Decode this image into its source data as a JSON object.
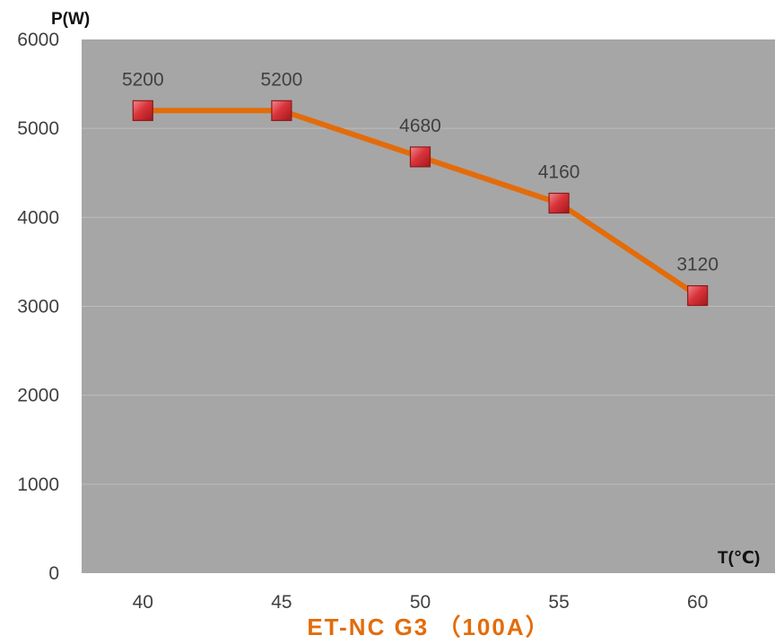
{
  "chart_data": {
    "type": "line",
    "title": "ET-NC G3 （100A）",
    "xlabel": "T(℃)",
    "ylabel": "P(W)",
    "x": [
      40,
      45,
      50,
      55,
      60
    ],
    "categories": [
      "40",
      "45",
      "50",
      "55",
      "60"
    ],
    "series": [
      {
        "values": [
          5200,
          5200,
          4680,
          4160,
          3120
        ],
        "labels": [
          "5200",
          "5200",
          "4680",
          "4160",
          "3120"
        ]
      }
    ],
    "ylim": [
      0,
      6000
    ],
    "yticks": [
      "0",
      "1000",
      "2000",
      "3000",
      "4000",
      "5000",
      "6000"
    ],
    "grid": true,
    "colors": {
      "plot_background": "#a6a6a6",
      "gridline": "#bdbdbd",
      "line": "#e36c09",
      "marker_fill": "#d9343a",
      "marker_border": "#8b1a1a",
      "title": "#e36c09"
    }
  }
}
